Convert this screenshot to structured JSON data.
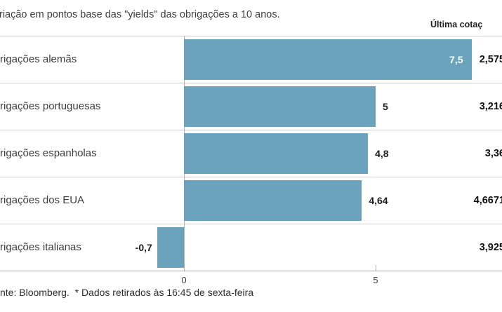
{
  "header": {
    "title": "riação em pontos base das \"yields\" das obrigações a 10 anos.",
    "last_quote_label": "Última cotaç"
  },
  "footer": {
    "source": "nte: Bloomberg.  * Dados retirados às 16:45 de sexta-feira"
  },
  "colors": {
    "bar": "#6ba3bd",
    "grid": "#cccccc",
    "axis": "#a6a6a6"
  },
  "chart_data": {
    "type": "bar",
    "orientation": "horizontal",
    "title": "riação em pontos base das \"yields\" das obrigações a 10 anos.",
    "categories": [
      "rigações alemãs",
      "rigações portuguesas",
      "rigações espanholas",
      "rigações dos EUA",
      "rigações italianas"
    ],
    "values": [
      7.5,
      5,
      4.8,
      4.64,
      -0.7
    ],
    "value_labels": [
      "7,5",
      "5",
      "4,8",
      "4,64",
      "-0,7"
    ],
    "last_quotes": [
      "2,575",
      "3,216",
      "3,36",
      "4,6671",
      "3,925"
    ],
    "x_ticks": [
      {
        "label": "0",
        "value": 0
      },
      {
        "label": "5",
        "value": 5
      }
    ],
    "xlim": [
      -4.8,
      8.3
    ],
    "grid": false,
    "legend": null
  }
}
